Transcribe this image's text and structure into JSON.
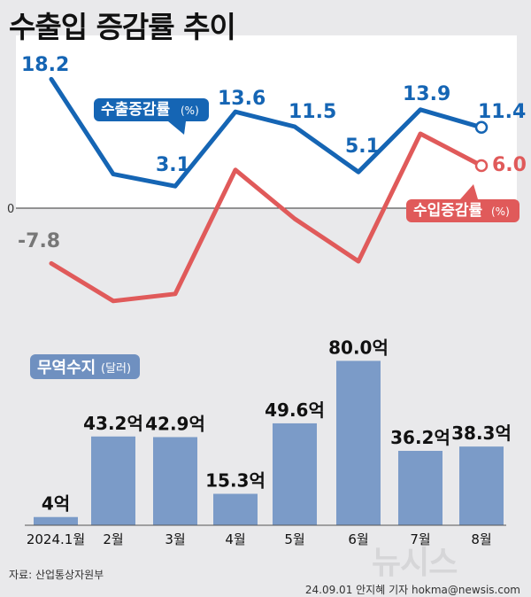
{
  "title": "수출입 증감률 추이",
  "colors": {
    "export": "#1565b4",
    "import": "#e05a5a",
    "bar": "#7b9bc8",
    "trade_label_bg": "#6f90c0"
  },
  "chart_data": [
    {
      "type": "line",
      "categories": [
        "2024.1월",
        "2월",
        "3월",
        "4월",
        "5월",
        "6월",
        "7월",
        "8월"
      ],
      "series": [
        {
          "name": "수출증감률",
          "unit": "(%)",
          "values": [
            18.2,
            4.8,
            3.1,
            13.6,
            11.5,
            5.1,
            13.9,
            11.4
          ],
          "labels": [
            "18.2",
            "",
            "3.1",
            "13.6",
            "11.5",
            "5.1",
            "13.9",
            "11.4"
          ]
        },
        {
          "name": "수입증감률",
          "unit": "(%)",
          "values": [
            -7.8,
            -13.1,
            -12.1,
            5.4,
            -1.5,
            -7.5,
            10.5,
            6.0
          ],
          "labels": [
            "-7.8",
            "",
            "",
            "",
            "",
            "",
            "",
            "6.0"
          ]
        }
      ],
      "zero_label": "0",
      "ylim": [
        -14.5,
        20.5
      ]
    },
    {
      "type": "bar",
      "name": "무역수지",
      "unit": "(달러)",
      "categories": [
        "2024.1월",
        "2월",
        "3월",
        "4월",
        "5월",
        "6월",
        "7월",
        "8월"
      ],
      "values": [
        4,
        43.2,
        42.9,
        15.3,
        49.6,
        80.0,
        36.2,
        38.3
      ],
      "labels": [
        "4억",
        "43.2억",
        "42.9억",
        "15.3억",
        "49.6억",
        "80.0억",
        "36.2억",
        "38.3억"
      ],
      "ylim": [
        0,
        80
      ]
    }
  ],
  "footer": {
    "source": "자료: 산업통상자원부",
    "credit": "24.09.01  안지혜  기자  hokma@newsis.com",
    "watermark": "뉴시스"
  }
}
